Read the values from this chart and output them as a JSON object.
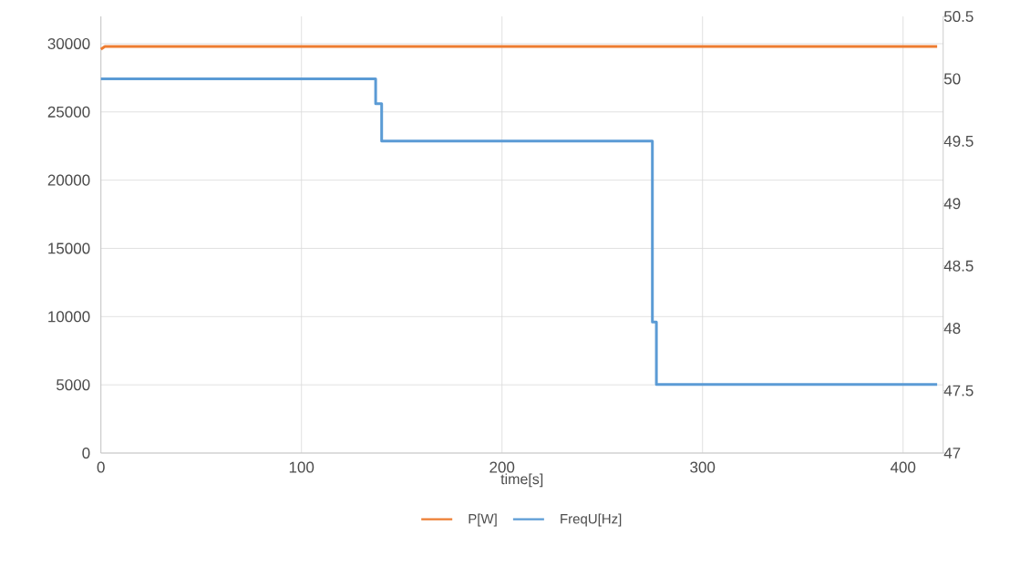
{
  "chart_data": {
    "type": "line",
    "xlabel": "time[s]",
    "xlim": [
      0,
      420
    ],
    "xticks": [
      0,
      100,
      200,
      300,
      400
    ],
    "ylim": [
      0,
      32000
    ],
    "yticks": [
      0,
      5000,
      10000,
      15000,
      20000,
      25000,
      30000
    ],
    "y2lim": [
      47,
      50.5
    ],
    "y2ticks": [
      47,
      47.5,
      48,
      48.5,
      49,
      49.5,
      50,
      50.5
    ],
    "grid": true,
    "legend": "bottom",
    "series": [
      {
        "name": "P[W]",
        "color": "#ed7d31",
        "x": [
          0,
          2,
          417
        ],
        "values": [
          29600,
          29800,
          29800
        ]
      },
      {
        "name": "FreqU[Hz]",
        "type": "step",
        "axis": "y2",
        "color": "#5b9bd5",
        "x": [
          0,
          137,
          140,
          275,
          277,
          417
        ],
        "values": [
          50,
          49.8,
          49.5,
          48.05,
          47.55,
          47.55
        ]
      }
    ]
  }
}
